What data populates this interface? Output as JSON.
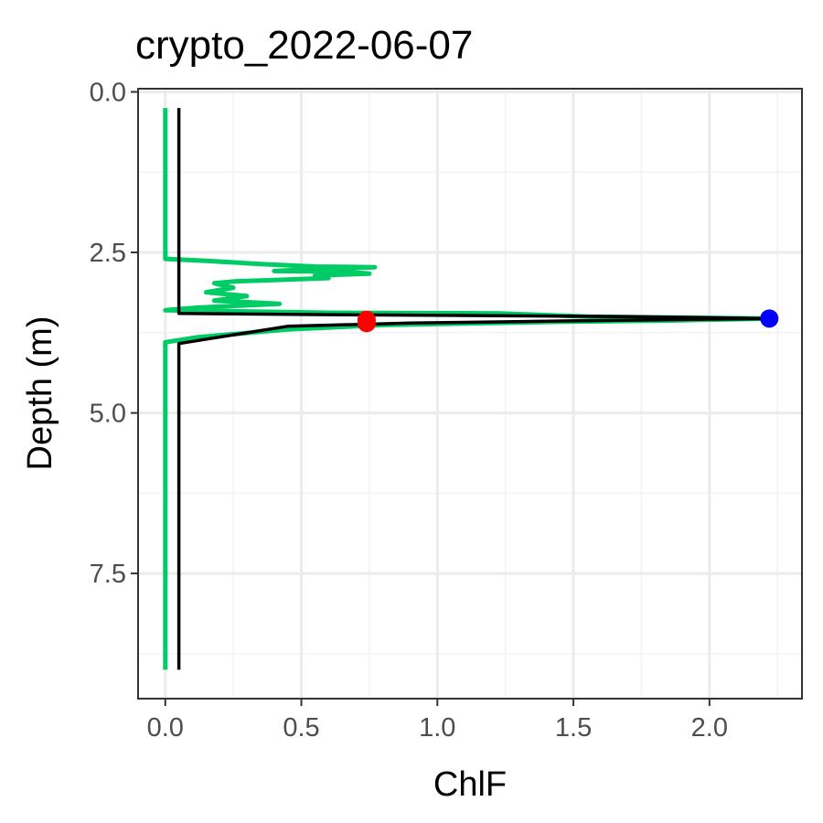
{
  "chart_data": {
    "type": "line",
    "title": "crypto_2022-06-07",
    "xlabel": "ChlF",
    "ylabel": "Depth (m)",
    "xlim": [
      -0.1,
      2.34
    ],
    "ylim": [
      9.45,
      -0.05
    ],
    "y_reversed": true,
    "grid": true,
    "x_ticks": [
      0,
      0.5,
      1.0,
      1.5,
      2.0
    ],
    "x_tick_labels": [
      "0.0",
      "0.5",
      "1.0",
      "1.5",
      "2.0"
    ],
    "y_ticks": [
      0,
      2.5,
      5.0,
      7.5
    ],
    "y_tick_labels": [
      "0.0",
      "2.5",
      "5.0",
      "7.5"
    ],
    "series": [
      {
        "color": "#00cc66",
        "points": [
          [
            0.0,
            0.25
          ],
          [
            0.0,
            2.6
          ],
          [
            0.15,
            2.63
          ],
          [
            0.35,
            2.68
          ],
          [
            0.55,
            2.72
          ],
          [
            0.77,
            2.73
          ],
          [
            0.55,
            2.76
          ],
          [
            0.4,
            2.79
          ],
          [
            0.66,
            2.8
          ],
          [
            0.75,
            2.83
          ],
          [
            0.55,
            2.86
          ],
          [
            0.6,
            2.9
          ],
          [
            0.4,
            2.93
          ],
          [
            0.26,
            2.95
          ],
          [
            0.18,
            2.98
          ],
          [
            0.25,
            3.05
          ],
          [
            0.15,
            3.12
          ],
          [
            0.3,
            3.18
          ],
          [
            0.18,
            3.25
          ],
          [
            0.42,
            3.3
          ],
          [
            0.12,
            3.36
          ],
          [
            0.0,
            3.4
          ],
          [
            0.6,
            3.44
          ],
          [
            1.23,
            3.45
          ],
          [
            1.55,
            3.5
          ],
          [
            2.22,
            3.53
          ],
          [
            1.85,
            3.56
          ],
          [
            1.45,
            3.58
          ],
          [
            0.8,
            3.63
          ],
          [
            0.45,
            3.7
          ],
          [
            0.12,
            3.82
          ],
          [
            0.0,
            3.9
          ],
          [
            0.0,
            9.0
          ]
        ]
      },
      {
        "color": "#000000",
        "points": [
          [
            0.05,
            0.25
          ],
          [
            0.05,
            3.45
          ],
          [
            0.6,
            3.47
          ],
          [
            1.7,
            3.5
          ],
          [
            2.22,
            3.53
          ],
          [
            1.6,
            3.56
          ],
          [
            0.9,
            3.6
          ],
          [
            0.45,
            3.65
          ],
          [
            0.05,
            3.92
          ],
          [
            0.05,
            9.0
          ]
        ]
      }
    ],
    "markers": [
      {
        "x": 2.22,
        "y": 3.53,
        "color": "#0000ff"
      },
      {
        "x": 0.74,
        "y": 3.55,
        "color": "#ff0000"
      },
      {
        "x": 0.74,
        "y": 3.6,
        "color": "#ff0000"
      }
    ]
  }
}
